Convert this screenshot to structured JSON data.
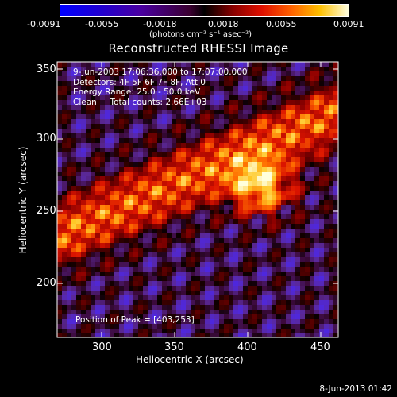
{
  "colorbar": {
    "tick_labels": [
      "-0.0091",
      "-0.0055",
      "-0.0018",
      "0.0018",
      "0.0055",
      "0.0091"
    ],
    "units_label": "(photons cm⁻² s⁻¹ asec⁻²)",
    "colors": [
      "#0000ff",
      "#2a00c8",
      "#500090",
      "#1a0000",
      "#b00000",
      "#ff2000",
      "#ffa000",
      "#ffffff"
    ]
  },
  "plot": {
    "title": "Reconstructed RHESSI Image",
    "info_lines": [
      "9-Jun-2003 17:06:36.000 to 17:07:00.000",
      "Detectors: 4F 5F 6F 7F 8F, Att 0",
      "Energy Range: 25.0 - 50.0 keV",
      "Clean     Total counts: 2.66E+03"
    ],
    "peak_text": "Position of Peak = [403,253]",
    "xlabel": "Heliocentric X (arcsec)",
    "ylabel": "Heliocentric Y (arcsec)",
    "x_ticks": [
      "300",
      "350",
      "400",
      "450"
    ],
    "y_ticks": [
      "350",
      "300",
      "250",
      "200"
    ],
    "x_range": [
      270,
      460
    ],
    "y_range": [
      160,
      355
    ]
  },
  "footer": {
    "timestamp": "8-Jun-2013 01:42"
  }
}
